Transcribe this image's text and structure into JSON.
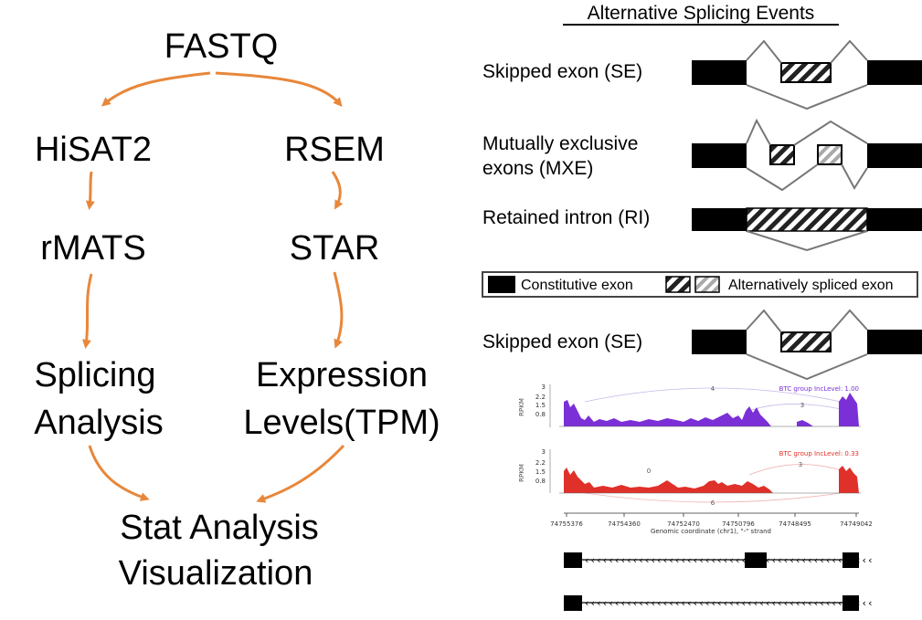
{
  "flowchart": {
    "fastq": "FASTQ",
    "hisat2": "HiSAT2",
    "rsem": "RSEM",
    "rmats": "rMATS",
    "star": "STAR",
    "splicing_line1": "Splicing",
    "splicing_line2": "Analysis",
    "expression_line1": "Expression",
    "expression_line2": "Levels(TPM)",
    "stat_line1": "Stat Analysis",
    "stat_line2": "Visualization",
    "arrow_color": "#E8873A"
  },
  "events_panel": {
    "title": "Alternative Splicing Events",
    "skipped_exon": "Skipped exon (SE)",
    "mxe_line1": "Mutually exclusive",
    "mxe_line2": "exons (MXE)",
    "retained_intron": "Retained intron (RI)",
    "legend_constitutive": "Constitutive exon",
    "legend_alternative": "Alternatively spliced exon",
    "skipped_exon_2": "Skipped exon (SE)"
  },
  "sashimi": {
    "track1_label": "BTC group IncLevel: 1.00",
    "track1_color": "#7B2FD6",
    "track2_label": "BTC group IncLevel: 0.33",
    "track2_color": "#E0302A",
    "y_axis_label": "RPKM",
    "y_ticks": [
      "3",
      "2.2",
      "1.5",
      "0.8"
    ],
    "x_ticks": [
      "74755376",
      "74754360",
      "74752470",
      "74750796",
      "74748495",
      "74749042"
    ],
    "x_axis_label": "Genomic coordinate (chr1), \"-\" strand",
    "track1_junctions": [
      "4",
      "3"
    ],
    "track2_junctions": [
      "0",
      "3",
      "6"
    ]
  }
}
